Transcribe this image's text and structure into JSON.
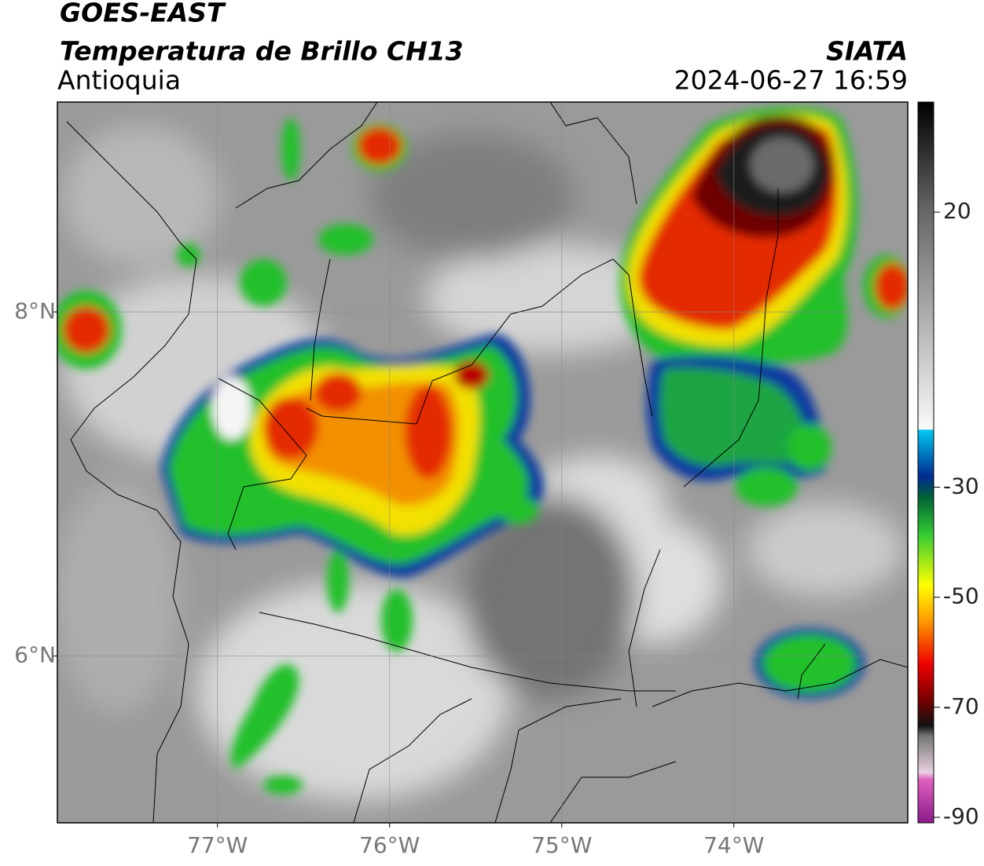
{
  "header": {
    "title": "GOES-EAST",
    "subtitle": "Temperatura de Brillo CH13",
    "region": "Antioquia",
    "source": "SIATA",
    "datetime": "2024-06-27 16:59"
  },
  "map": {
    "xlim": [
      -77.93,
      -72.99
    ],
    "ylim": [
      5.03,
      9.22
    ],
    "xticks": [
      {
        "value": -77,
        "label": "77°W"
      },
      {
        "value": -76,
        "label": "76°W"
      },
      {
        "value": -75,
        "label": "75°W"
      },
      {
        "value": -74,
        "label": "74°W"
      }
    ],
    "yticks": [
      {
        "value": 8,
        "label": "8°N"
      },
      {
        "value": 6,
        "label": "6°N"
      }
    ]
  },
  "colorbar": {
    "lim": [
      -91,
      40
    ],
    "ticks": [
      20,
      -30,
      -50,
      -70,
      -90
    ]
  }
}
